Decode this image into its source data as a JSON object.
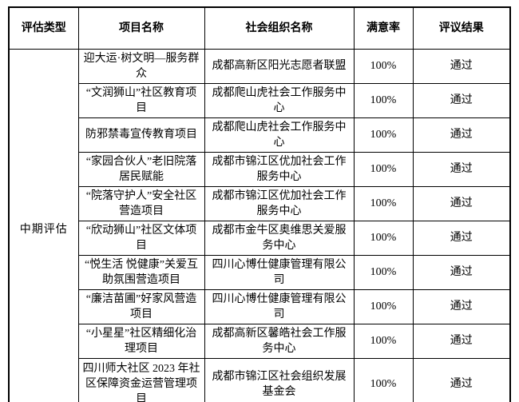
{
  "table": {
    "headers": {
      "evaluation_type": "评估类型",
      "project_name": "项目名称",
      "organization_name": "社会组织名称",
      "satisfaction_rate": "满意率",
      "review_result": "评议结果"
    },
    "category": "中期评估",
    "rows": [
      {
        "project": "迎大运·树文明—服务群众",
        "org": "成都高新区阳光志愿者联盟",
        "rate": "100%",
        "result": "通过"
      },
      {
        "project": "“文润狮山”社区教育项目",
        "org": "成都爬山虎社会工作服务中心",
        "rate": "100%",
        "result": "通过"
      },
      {
        "project": "防邪禁毒宣传教育项目",
        "org": "成都爬山虎社会工作服务中心",
        "rate": "100%",
        "result": "通过"
      },
      {
        "project": "“家园合伙人”老旧院落居民赋能",
        "org": "成都市锦江区优加社会工作服务中心",
        "rate": "100%",
        "result": "通过"
      },
      {
        "project": "“院落守护人”安全社区营造项目",
        "org": "成都市锦江区优加社会工作服务中心",
        "rate": "100%",
        "result": "通过"
      },
      {
        "project": "“欣动狮山”社区文体项目",
        "org": "成都市金牛区奥维思关爱服务中心",
        "rate": "100%",
        "result": "通过"
      },
      {
        "project": "“悦生活 悦健康”关爱互助氛围营造项目",
        "org": "四川心博仕健康管理有限公司",
        "rate": "100%",
        "result": "通过"
      },
      {
        "project": "“廉洁苗圃”好家风营造项目",
        "org": "四川心博仕健康管理有限公司",
        "rate": "100%",
        "result": "通过"
      },
      {
        "project": "“小星星”社区精细化治理项目",
        "org": "成都高新区馨皓社会工作服务中心",
        "rate": "100%",
        "result": "通过"
      },
      {
        "project": "四川师大社区 2023 年社区保障资金运营管理项目",
        "org": "成都市锦江区社会组织发展基金会",
        "rate": "100%",
        "result": "通过"
      }
    ]
  }
}
